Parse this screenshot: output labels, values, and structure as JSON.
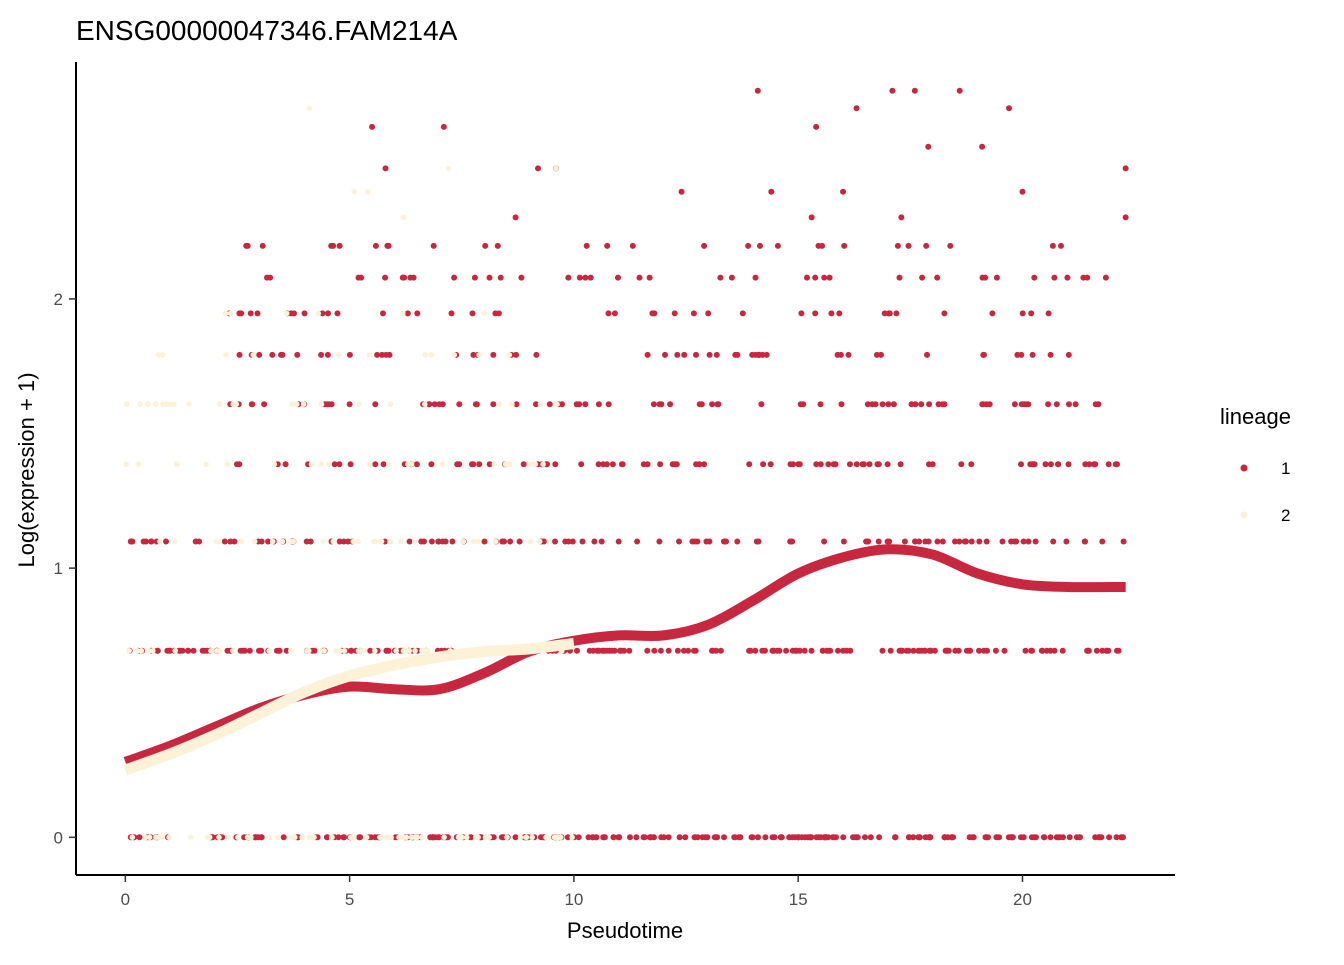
{
  "chart_data": {
    "type": "scatter",
    "title": "ENSG00000047346.FAM214A",
    "xlabel": "Pseudotime",
    "ylabel": "Log(expression + 1)",
    "xlim": [
      -1.1,
      23.4
    ],
    "ylim": [
      -0.14,
      2.88
    ],
    "x_ticks": [
      0,
      5,
      10,
      15,
      20
    ],
    "y_ticks": [
      0,
      1,
      2
    ],
    "x_tick_labels": [
      "0",
      "5",
      "10",
      "15",
      "20"
    ],
    "y_tick_labels": [
      "0",
      "1",
      "2"
    ],
    "grid": false,
    "legend": {
      "title": "lineage",
      "position": "right",
      "entries": [
        {
          "label": "1",
          "color": "#C8283F"
        },
        {
          "label": "2",
          "color": "#FDF1D8"
        }
      ]
    },
    "expression_levels": [
      0,
      0.693,
      1.099,
      1.386,
      1.609,
      1.792,
      1.946,
      2.079,
      2.197,
      2.303,
      2.398,
      2.485,
      2.565,
      2.639,
      2.708,
      2.773
    ],
    "series": [
      {
        "name": "1",
        "color": "#C8283F",
        "x_range": [
          0,
          22.3
        ],
        "smooth_x": [
          0,
          1,
          2,
          3,
          4,
          5,
          6,
          7,
          8,
          9,
          10,
          11,
          12,
          13,
          14,
          15,
          16,
          17,
          18,
          19,
          20,
          21,
          22.3
        ],
        "smooth_y": [
          0.28,
          0.34,
          0.41,
          0.48,
          0.53,
          0.56,
          0.55,
          0.55,
          0.61,
          0.69,
          0.73,
          0.75,
          0.75,
          0.79,
          0.88,
          0.98,
          1.04,
          1.07,
          1.05,
          0.98,
          0.94,
          0.93,
          0.93
        ],
        "sample_points": [
          {
            "x": 14.1,
            "y": 2.773
          },
          {
            "x": 16.3,
            "y": 2.708
          },
          {
            "x": 17.1,
            "y": 2.773
          },
          {
            "x": 17.6,
            "y": 2.773
          },
          {
            "x": 18.6,
            "y": 2.773
          },
          {
            "x": 19.7,
            "y": 2.708
          },
          {
            "x": 5.5,
            "y": 2.639
          },
          {
            "x": 7.1,
            "y": 2.639
          },
          {
            "x": 15.4,
            "y": 2.639
          },
          {
            "x": 17.9,
            "y": 2.565
          },
          {
            "x": 19.1,
            "y": 2.565
          },
          {
            "x": 5.8,
            "y": 2.485
          },
          {
            "x": 9.2,
            "y": 2.485
          },
          {
            "x": 9.6,
            "y": 2.485
          },
          {
            "x": 22.3,
            "y": 2.485
          },
          {
            "x": 12.4,
            "y": 2.398
          },
          {
            "x": 14.4,
            "y": 2.398
          },
          {
            "x": 16.0,
            "y": 2.398
          },
          {
            "x": 20.0,
            "y": 2.398
          },
          {
            "x": 8.7,
            "y": 2.303
          },
          {
            "x": 15.3,
            "y": 2.303
          },
          {
            "x": 17.3,
            "y": 2.303
          },
          {
            "x": 22.3,
            "y": 2.303
          }
        ]
      },
      {
        "name": "2",
        "color": "#FDF1D8",
        "x_range": [
          0,
          10
        ],
        "smooth_x": [
          0,
          1,
          2,
          3,
          4,
          5,
          6,
          7,
          8,
          9,
          10
        ],
        "smooth_y": [
          0.25,
          0.31,
          0.38,
          0.46,
          0.54,
          0.6,
          0.64,
          0.67,
          0.69,
          0.7,
          0.72
        ],
        "sample_points": [
          {
            "x": 4.1,
            "y": 2.708
          },
          {
            "x": 7.2,
            "y": 2.485
          },
          {
            "x": 9.6,
            "y": 2.485
          },
          {
            "x": 5.1,
            "y": 2.398
          },
          {
            "x": 5.4,
            "y": 2.398
          },
          {
            "x": 6.2,
            "y": 2.303
          },
          {
            "x": 4.3,
            "y": 1.946
          },
          {
            "x": 8.0,
            "y": 1.946
          },
          {
            "x": 0.5,
            "y": 1.609
          },
          {
            "x": 1.0,
            "y": 1.609
          },
          {
            "x": 2.1,
            "y": 1.609
          }
        ]
      }
    ]
  }
}
